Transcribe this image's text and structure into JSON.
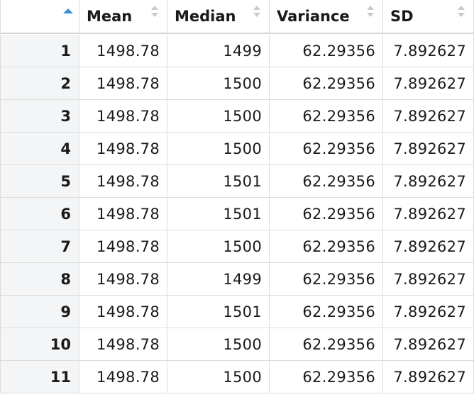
{
  "table": {
    "columns": [
      "",
      "Mean",
      "Median",
      "Variance",
      "SD"
    ],
    "rows": [
      {
        "name": "1",
        "mean": "1498.78",
        "median": "1499",
        "variance": "62.29356",
        "sd": "7.892627"
      },
      {
        "name": "2",
        "mean": "1498.78",
        "median": "1500",
        "variance": "62.29356",
        "sd": "7.892627"
      },
      {
        "name": "3",
        "mean": "1498.78",
        "median": "1500",
        "variance": "62.29356",
        "sd": "7.892627"
      },
      {
        "name": "4",
        "mean": "1498.78",
        "median": "1500",
        "variance": "62.29356",
        "sd": "7.892627"
      },
      {
        "name": "5",
        "mean": "1498.78",
        "median": "1501",
        "variance": "62.29356",
        "sd": "7.892627"
      },
      {
        "name": "6",
        "mean": "1498.78",
        "median": "1501",
        "variance": "62.29356",
        "sd": "7.892627"
      },
      {
        "name": "7",
        "mean": "1498.78",
        "median": "1500",
        "variance": "62.29356",
        "sd": "7.892627"
      },
      {
        "name": "8",
        "mean": "1498.78",
        "median": "1499",
        "variance": "62.29356",
        "sd": "7.892627"
      },
      {
        "name": "9",
        "mean": "1498.78",
        "median": "1501",
        "variance": "62.29356",
        "sd": "7.892627"
      },
      {
        "name": "10",
        "mean": "1498.78",
        "median": "1500",
        "variance": "62.29356",
        "sd": "7.892627"
      },
      {
        "name": "11",
        "mean": "1498.78",
        "median": "1500",
        "variance": "62.29356",
        "sd": "7.892627"
      }
    ]
  },
  "colors": {
    "sort_active": "#3c8dd8",
    "sort_inactive": "#c9c9c9",
    "rowname_bg": "#f3f5f7",
    "border": "#dcdcdc"
  },
  "icons": {
    "active_sort": "sort-ascending-icon",
    "inactive_sort": "sort-both-icon"
  }
}
